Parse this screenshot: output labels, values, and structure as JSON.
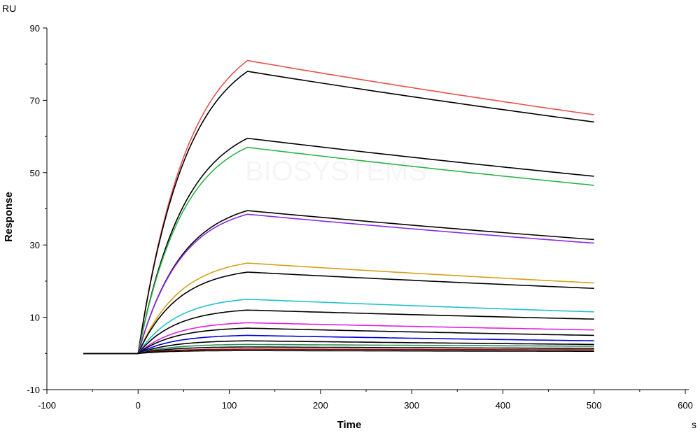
{
  "chart_data": {
    "type": "line",
    "title": "",
    "xlabel": "Time",
    "ylabel": "Response",
    "x_unit": "s",
    "y_unit": "RU",
    "xlim": [
      -100,
      600
    ],
    "ylim": [
      -10,
      90
    ],
    "x_ticks": [
      -100,
      0,
      100,
      200,
      300,
      400,
      500,
      600
    ],
    "y_ticks": [
      -10,
      10,
      30,
      50,
      70,
      90
    ],
    "grid": false,
    "legend": "none",
    "watermark": "BIOSYSTEMS",
    "time_points": [
      -60,
      0,
      120,
      500
    ],
    "series": [
      {
        "color": "#e8524a",
        "peak": 81.0,
        "end": 66.0
      },
      {
        "color": "#000000",
        "peak": 78.0,
        "end": 64.0
      },
      {
        "color": "#000000",
        "peak": 59.5,
        "end": 49.0
      },
      {
        "color": "#2db34a",
        "peak": 57.0,
        "end": 46.5
      },
      {
        "color": "#000000",
        "peak": 39.5,
        "end": 31.5
      },
      {
        "color": "#8a2be2",
        "peak": 38.5,
        "end": 30.5
      },
      {
        "color": "#d4a017",
        "peak": 25.0,
        "end": 19.5
      },
      {
        "color": "#000000",
        "peak": 22.5,
        "end": 18.0
      },
      {
        "color": "#20c0d0",
        "peak": 15.0,
        "end": 11.5
      },
      {
        "color": "#000000",
        "peak": 12.0,
        "end": 9.5
      },
      {
        "color": "#e020e0",
        "peak": 8.5,
        "end": 6.5
      },
      {
        "color": "#000000",
        "peak": 7.0,
        "end": 5.0
      },
      {
        "color": "#0000e0",
        "peak": 5.0,
        "end": 3.5
      },
      {
        "color": "#000000",
        "peak": 3.5,
        "end": 2.5
      },
      {
        "color": "#2e8b57",
        "peak": 2.5,
        "end": 2.0
      },
      {
        "color": "#000000",
        "peak": 1.8,
        "end": 1.4
      },
      {
        "color": "#8b0000",
        "peak": 1.2,
        "end": 1.0
      },
      {
        "color": "#000000",
        "peak": 0.8,
        "end": 0.6
      }
    ]
  }
}
